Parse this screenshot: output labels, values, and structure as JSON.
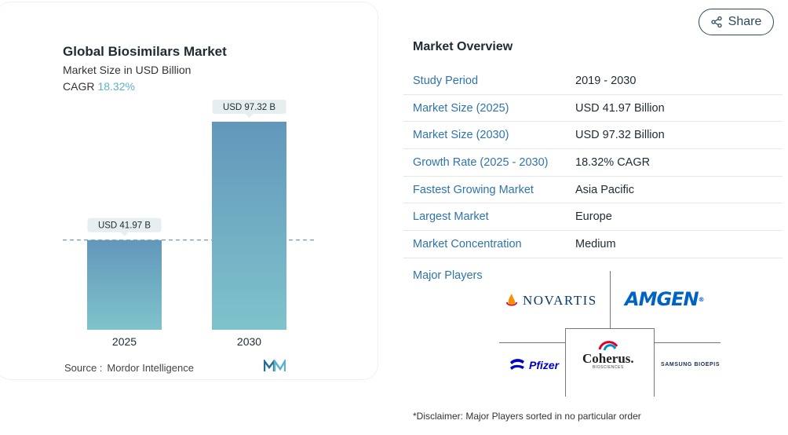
{
  "chart": {
    "title": "Global Biosimilars Market",
    "subtitle": "Market Size in USD Billion",
    "cagr_label": "CAGR",
    "cagr_value": "18.32%",
    "source_label": "Source :",
    "source_value": "Mordor Intelligence"
  },
  "chart_data": {
    "type": "bar",
    "title": "Global Biosimilars Market",
    "subtitle": "Market Size in USD Billion",
    "categories": [
      "2025",
      "2030"
    ],
    "values": [
      41.97,
      97.32
    ],
    "data_labels": [
      "USD 41.97 B",
      "USD 97.32 B"
    ],
    "reference_line": 41.97,
    "ylim": [
      0,
      97.32
    ],
    "grid": false,
    "colors": {
      "bar_top": "#6297bb",
      "bar_bottom": "#7fc3cb",
      "label_bg": "#e7eef0",
      "reference_line": "#4d7fa6"
    }
  },
  "share": {
    "label": "Share"
  },
  "overview": {
    "title": "Market Overview",
    "rows": [
      {
        "label": "Study Period",
        "value": "2019 - 2030"
      },
      {
        "label": "Market Size (2025)",
        "value": "USD 41.97 Billion"
      },
      {
        "label": "Market Size (2030)",
        "value": "USD 97.32 Billion"
      },
      {
        "label": "Growth Rate (2025 - 2030)",
        "value": "18.32% CAGR"
      },
      {
        "label": "Fastest Growing Market",
        "value": "Asia Pacific"
      },
      {
        "label": "Largest Market",
        "value": "Europe"
      },
      {
        "label": "Market Concentration",
        "value": "Medium"
      }
    ]
  },
  "players": {
    "label": "Major Players",
    "logos": {
      "novartis": "NOVARTIS",
      "amgen": "AMGEN",
      "pfizer": "Pfizer",
      "coherus": "Coherus.",
      "coherus_sub": "BIOSCIENCES",
      "samsung": "SAMSUNG BIOEPIS"
    }
  },
  "disclaimer": "*Disclaimer: Major Players sorted in no particular order",
  "colors": {
    "accent_blue": "#2e74ad",
    "cagr_teal": "#5ab3c6",
    "share_border": "#2c4a5e"
  }
}
